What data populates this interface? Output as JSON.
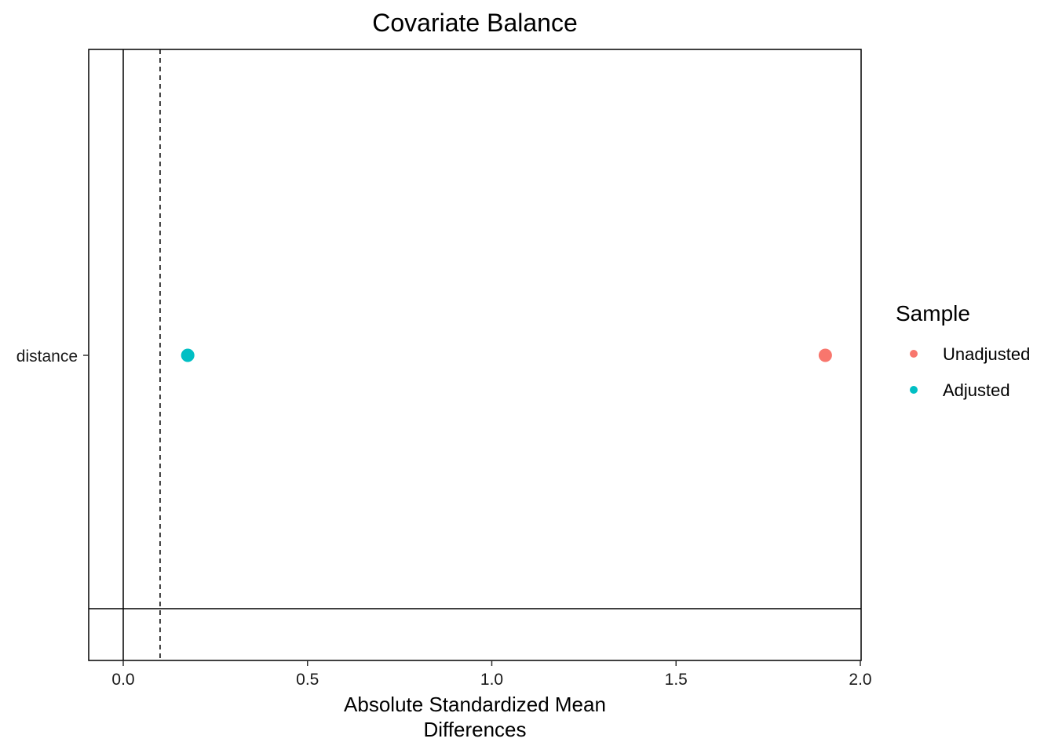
{
  "chart_data": {
    "type": "scatter",
    "title": "Covariate Balance",
    "xlabel": [
      "Absolute Standardized Mean",
      "Differences"
    ],
    "ylabel": "",
    "xlim": [
      -0.095,
      2.0
    ],
    "x_ticks": [
      "0.0",
      "0.5",
      "1.0",
      "1.5",
      "2.0"
    ],
    "x_tick_values": [
      0.0,
      0.5,
      1.0,
      1.5,
      2.0
    ],
    "y_categories": [
      "distance"
    ],
    "reference_lines": {
      "zero": 0.0,
      "threshold": 0.1
    },
    "grid": false,
    "legend": {
      "title": "Sample",
      "placement": "right",
      "entries": [
        {
          "label": "Unadjusted",
          "color": "#F8766D"
        },
        {
          "label": "Adjusted",
          "color": "#00BFC4"
        }
      ]
    },
    "series": [
      {
        "name": "Unadjusted",
        "color": "#F8766D",
        "points": [
          {
            "y": "distance",
            "x": 1.905
          }
        ]
      },
      {
        "name": "Adjusted",
        "color": "#00BFC4",
        "points": [
          {
            "y": "distance",
            "x": 0.175
          }
        ]
      }
    ]
  }
}
